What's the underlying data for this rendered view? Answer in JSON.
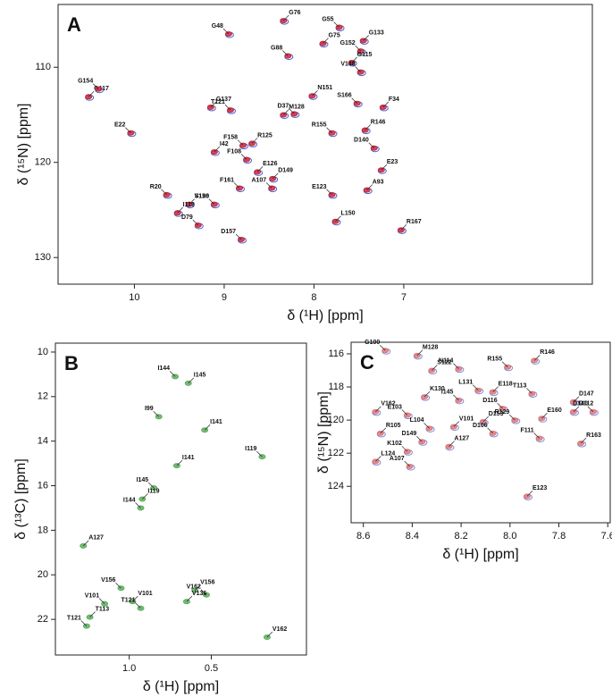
{
  "chart_data": [
    {
      "type": "scatter",
      "title": "A",
      "xlabel": "δ (¹H) [ppm]",
      "ylabel": "δ (¹⁵N) [ppm]",
      "xlim": [
        10.85,
        4.9
      ],
      "ylim": [
        103.4,
        132.8
      ],
      "xticks": [
        10,
        9,
        8,
        7
      ],
      "yticks": [
        110,
        120,
        130
      ],
      "color": "#c8283c",
      "labels": [
        "G48",
        "G76",
        "G55",
        "G133",
        "G88",
        "G75",
        "G152",
        "G115",
        "V148",
        "G117",
        "G154",
        "G137",
        "T121",
        "N151",
        "D37",
        "M128",
        "S166",
        "F34",
        "R155",
        "R146",
        "E22",
        "I42",
        "F158",
        "R125",
        "F108",
        "E126",
        "D140",
        "E23",
        "F161",
        "D149",
        "A107",
        "A93",
        "R20",
        "S120",
        "V156",
        "I119",
        "D79",
        "L150",
        "E123",
        "R167",
        "D157"
      ],
      "x": [
        8.95,
        8.34,
        7.72,
        7.45,
        8.29,
        7.9,
        7.48,
        7.58,
        7.48,
        10.51,
        10.4,
        9.15,
        8.93,
        8.02,
        8.22,
        8.34,
        7.52,
        7.23,
        7.8,
        7.43,
        10.04,
        9.11,
        8.79,
        8.69,
        8.75,
        8.63,
        7.33,
        7.25,
        8.83,
        8.46,
        8.47,
        7.41,
        9.64,
        9.39,
        9.11,
        9.52,
        9.29,
        7.76,
        7.8,
        7.03,
        8.81
      ],
      "values": [
        106.5,
        105.1,
        105.8,
        107.2,
        108.8,
        107.5,
        108.3,
        109.5,
        110.5,
        113.1,
        112.3,
        114.2,
        114.5,
        113.0,
        114.9,
        115.0,
        113.8,
        114.2,
        116.9,
        116.6,
        116.9,
        118.9,
        118.2,
        118.0,
        119.7,
        121.0,
        118.5,
        120.8,
        122.7,
        121.7,
        122.7,
        122.9,
        123.4,
        124.4,
        124.4,
        125.3,
        126.6,
        126.2,
        123.4,
        127.1,
        128.1
      ]
    },
    {
      "type": "scatter",
      "title": "B",
      "xlabel": "δ (¹H) [ppm]",
      "ylabel": "δ (¹³C) [ppm]",
      "xlim": [
        1.45,
        -0.08
      ],
      "ylim": [
        9.6,
        23.6
      ],
      "xticks": [
        {
          "value": 1,
          "label": "1.0"
        },
        0.5
      ],
      "yticks": [
        10,
        12,
        14,
        16,
        18,
        20,
        22
      ],
      "color": "#5fae5f",
      "labels": [
        "I144",
        "I145",
        "I99",
        "I141",
        "I119",
        "I141",
        "I145",
        "I119",
        "I144",
        "A127",
        "V156",
        "V156",
        "V162",
        "V136",
        "V101",
        "V101",
        "T121",
        "T113",
        "T121",
        "V162"
      ],
      "x": [
        0.72,
        0.64,
        0.82,
        0.54,
        0.19,
        0.71,
        0.85,
        0.92,
        0.93,
        1.28,
        1.05,
        0.6,
        0.53,
        0.65,
        1.15,
        0.98,
        0.93,
        1.24,
        1.26,
        0.16
      ],
      "values": [
        11.1,
        11.4,
        12.9,
        13.5,
        14.7,
        15.1,
        16.1,
        16.6,
        17.0,
        18.7,
        20.6,
        20.7,
        20.9,
        21.2,
        21.3,
        21.2,
        21.5,
        21.9,
        22.3,
        22.8
      ]
    },
    {
      "type": "scatter",
      "title": "C",
      "xlabel": "δ (¹H) [ppm]",
      "ylabel": "δ (¹⁵N) [ppm]",
      "xlim": [
        8.65,
        7.59
      ],
      "ylim": [
        115.3,
        126.2
      ],
      "xticks": [
        8.6,
        8.4,
        8.2,
        {
          "value": 8,
          "label": "8.0"
        },
        7.8,
        7.6
      ],
      "yticks": [
        116,
        118,
        120,
        122,
        124
      ],
      "color": "#e07878",
      "labels": [
        "G100",
        "M128",
        "N114",
        "S122",
        "R155",
        "R146",
        "L131",
        "E118",
        "T113",
        "K130",
        "I145",
        "D147",
        "D116",
        "D112",
        "D140",
        "V162",
        "E103",
        "E160",
        "R129",
        "D153",
        "L104",
        "V101",
        "D106",
        "R105",
        "F111",
        "R163",
        "D149",
        "A127",
        "K102",
        "L124",
        "A107",
        "E123"
      ],
      "x": [
        8.51,
        8.38,
        8.21,
        8.32,
        8.01,
        7.9,
        8.13,
        8.07,
        7.91,
        8.35,
        8.21,
        7.74,
        8.03,
        7.74,
        7.66,
        8.55,
        8.42,
        7.87,
        7.98,
        8.11,
        8.33,
        8.23,
        8.07,
        8.53,
        7.88,
        7.71,
        8.36,
        8.25,
        8.42,
        8.55,
        8.41,
        7.93
      ],
      "values": [
        115.8,
        116.1,
        116.9,
        117.0,
        116.8,
        116.4,
        118.2,
        118.3,
        118.4,
        118.6,
        118.8,
        118.9,
        119.3,
        119.5,
        119.5,
        119.5,
        119.7,
        119.9,
        120.0,
        120.1,
        120.5,
        120.4,
        120.8,
        120.8,
        121.1,
        121.4,
        121.3,
        121.6,
        121.9,
        122.5,
        122.8,
        124.6
      ]
    }
  ]
}
